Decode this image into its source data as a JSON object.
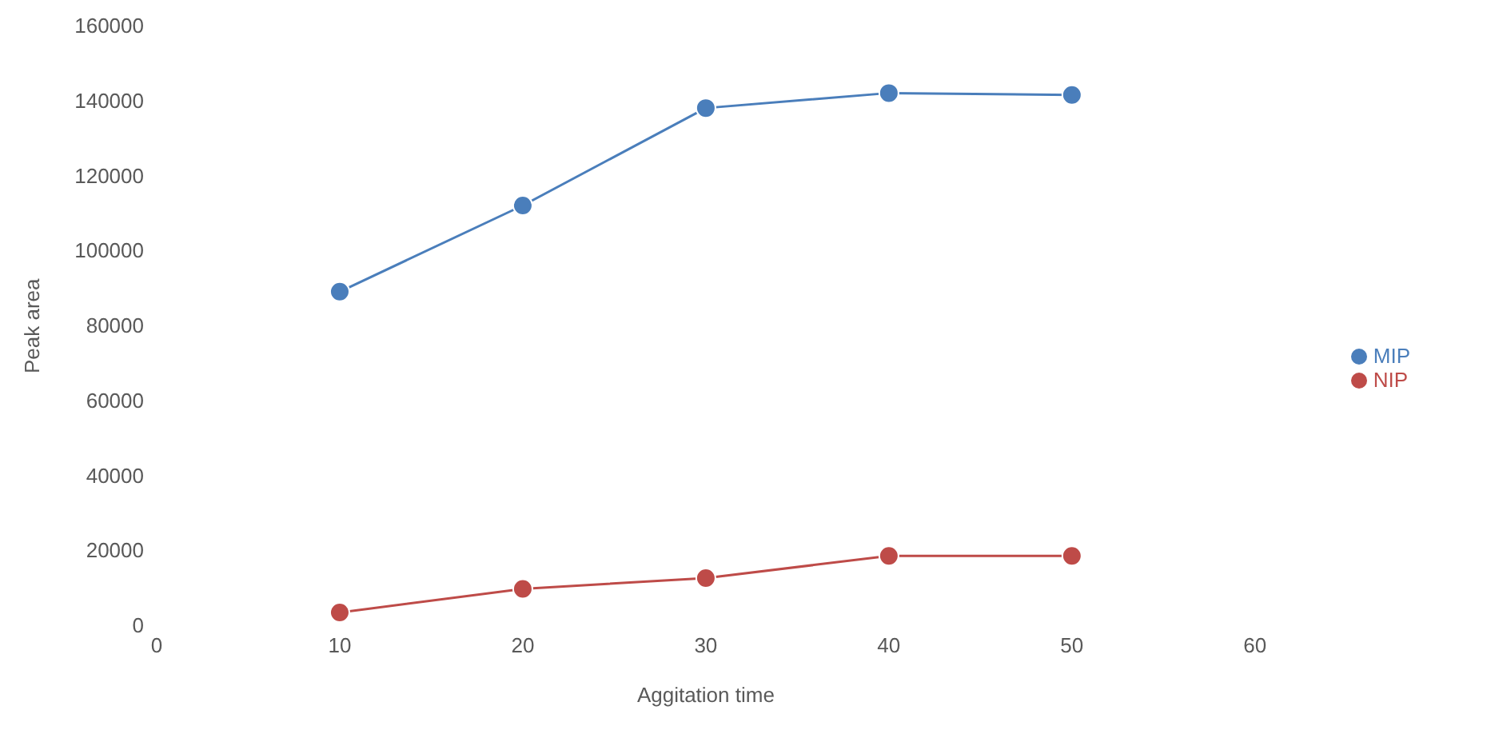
{
  "chart_data": {
    "type": "line",
    "xlabel": "Aggitation time",
    "ylabel": "Peak area",
    "x": [
      10,
      20,
      30,
      40,
      50
    ],
    "series": [
      {
        "name": "MIP",
        "color": "#4a7ebb",
        "values": [
          89000,
          112000,
          138000,
          142000,
          141500
        ]
      },
      {
        "name": "NIP",
        "color": "#be4b48",
        "values": [
          3400,
          9700,
          12600,
          18500,
          18500
        ]
      }
    ],
    "xlim": [
      0,
      60
    ],
    "xticks": [
      0,
      10,
      20,
      30,
      40,
      50,
      60
    ],
    "ylim": [
      0,
      160000
    ],
    "yticks": [
      0,
      20000,
      40000,
      60000,
      80000,
      100000,
      120000,
      140000,
      160000
    ],
    "grid": false,
    "legend": "right",
    "marker": "circle",
    "line_style": "solid"
  }
}
